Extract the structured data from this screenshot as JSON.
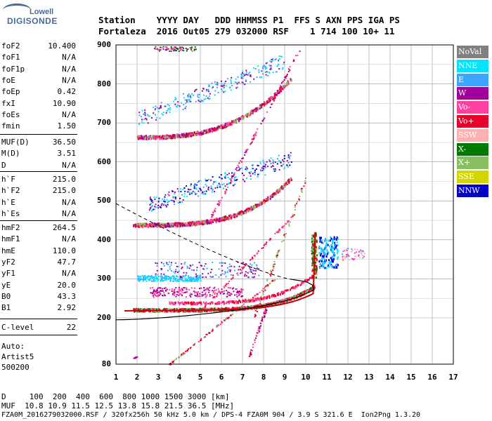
{
  "logo": {
    "top": "Lowell",
    "bottom": "DIGISONDE"
  },
  "header": {
    "line1": "Station    YYYY DAY   DDD HHMMSS P1  FFS S AXN PPS IGA PS",
    "line2": "Fortaleza  2016 Out05 279 032000 RSF    1 714 100 10+ 11"
  },
  "params": {
    "group1": [
      {
        "name": "foF2",
        "value": "10.400"
      },
      {
        "name": "foF1",
        "value": "N/A"
      },
      {
        "name": "foF1p",
        "value": "N/A"
      },
      {
        "name": "foE",
        "value": "N/A"
      },
      {
        "name": "foEp",
        "value": "0.42"
      },
      {
        "name": "fxI",
        "value": "10.90"
      },
      {
        "name": "foEs",
        "value": "N/A"
      },
      {
        "name": "fmin",
        "value": "1.50"
      }
    ],
    "group2": [
      {
        "name": "MUF(D)",
        "value": "36.50"
      },
      {
        "name": "M(D)",
        "value": "3.51"
      },
      {
        "name": "D",
        "value": "N/A"
      }
    ],
    "group3": [
      {
        "name": "h`F",
        "value": "215.0"
      },
      {
        "name": "h`F2",
        "value": "215.0"
      },
      {
        "name": "h`E",
        "value": "N/A"
      },
      {
        "name": "h`Es",
        "value": "N/A"
      }
    ],
    "group4": [
      {
        "name": "hmF2",
        "value": "264.5"
      },
      {
        "name": "hmF1",
        "value": "N/A"
      },
      {
        "name": "hmE",
        "value": "110.0"
      },
      {
        "name": "yF2",
        "value": "47.7"
      },
      {
        "name": "yF1",
        "value": "N/A"
      },
      {
        "name": "yE",
        "value": "20.0"
      },
      {
        "name": "B0",
        "value": "43.3"
      },
      {
        "name": "B1",
        "value": "2.92"
      }
    ],
    "group5": [
      {
        "name": "C-level",
        "value": "22"
      }
    ],
    "autoscaling": [
      "Auto:",
      "Artist5",
      "500200"
    ]
  },
  "legend": [
    {
      "label": "NoVal",
      "color": "#808080"
    },
    {
      "label": "NNE",
      "color": "#00e5ff"
    },
    {
      "label": "E",
      "color": "#3aa6ff"
    },
    {
      "label": "W",
      "color": "#a0009c"
    },
    {
      "label": "Vo-",
      "color": "#ff40a0"
    },
    {
      "label": "Vo+",
      "color": "#e8002a"
    },
    {
      "label": "SSW",
      "color": "#ffb0b0"
    },
    {
      "label": "X-",
      "color": "#007a00"
    },
    {
      "label": "X+",
      "color": "#88c060"
    },
    {
      "label": "SSE",
      "color": "#d4d400"
    },
    {
      "label": "NNW",
      "color": "#0000c8"
    }
  ],
  "chart_data": {
    "type": "scatter",
    "x_ticks": [
      "1",
      "2",
      "3",
      "4",
      "5",
      "6",
      "7",
      "8",
      "9",
      "10",
      "11",
      "12",
      "13",
      "14",
      "15",
      "16",
      "17"
    ],
    "y_ticks": [
      "900",
      "800",
      "700",
      "600",
      "500",
      "400",
      "300",
      "200",
      "80"
    ],
    "xlim": [
      1,
      17
    ],
    "ylim_labels": [
      "80",
      "900"
    ],
    "grid": true,
    "legend_placement": "right"
  },
  "footer": {
    "row1": "D     100  200  400  600  800 1000 1500 3000 [km]",
    "row2": "MUF  10.8 10.9 11.5 12.5 13.8 15.8 21.5 36.5 [MHz]",
    "row3": "FZA0M_2016279032000.RSF / 320fx256h 50 kHz 5.0 km / DPS-4 FZA0M 904 / 3.9 S 321.6 E  Ion2Png 1.3.20"
  }
}
